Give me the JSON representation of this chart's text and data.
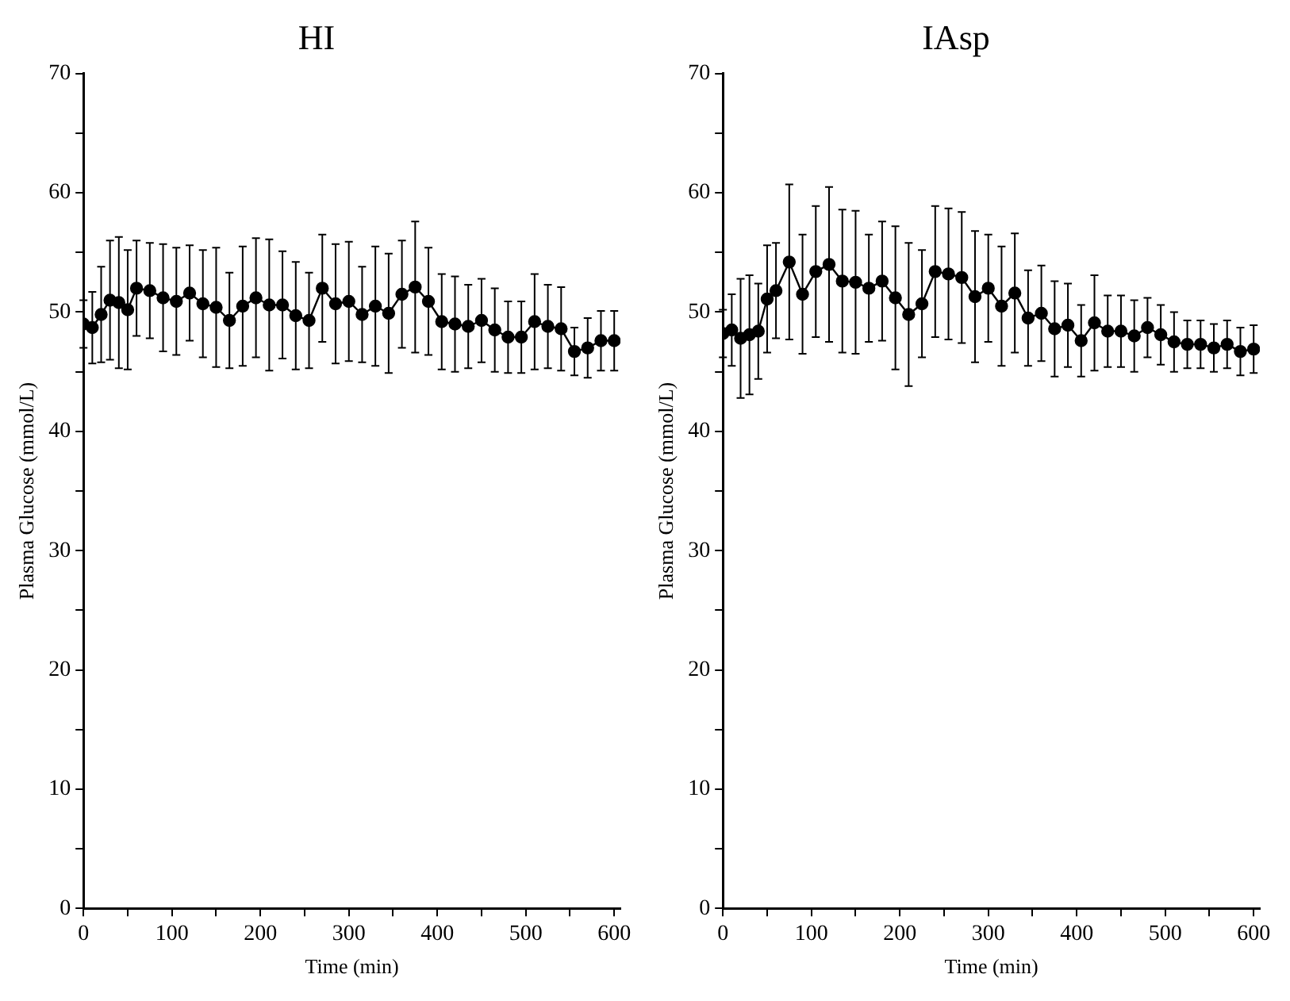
{
  "chart_data": [
    {
      "type": "line",
      "title": "HI",
      "xlabel": "Time (min)",
      "ylabel": "Plasma Glucose (mmol/L)",
      "x": [
        0,
        10,
        20,
        30,
        40,
        50,
        60,
        75,
        90,
        105,
        120,
        135,
        150,
        165,
        180,
        195,
        210,
        225,
        240,
        255,
        270,
        285,
        300,
        315,
        330,
        345,
        360,
        375,
        390,
        405,
        420,
        435,
        450,
        465,
        480,
        495,
        510,
        525,
        540,
        555,
        570,
        585,
        600
      ],
      "series": [
        {
          "color": "#000000",
          "values": [
            49.0,
            48.7,
            49.8,
            51.0,
            50.8,
            50.2,
            52.0,
            51.8,
            51.2,
            50.9,
            51.6,
            50.7,
            50.4,
            49.3,
            50.5,
            51.2,
            50.6,
            50.6,
            49.7,
            49.3,
            52.0,
            50.7,
            50.9,
            49.8,
            50.5,
            49.9,
            51.5,
            52.1,
            50.9,
            49.2,
            49.0,
            48.8,
            49.3,
            48.5,
            47.9,
            47.9,
            49.2,
            48.8,
            48.6,
            46.7,
            47.0,
            47.6,
            47.6
          ],
          "errors": [
            2,
            3,
            4,
            5,
            5.5,
            5,
            4,
            4,
            4.5,
            4.5,
            4,
            4.5,
            5,
            4,
            5,
            5,
            5.5,
            4.5,
            4.5,
            4,
            4.5,
            5,
            5,
            4,
            5,
            5,
            4.5,
            5.5,
            4.5,
            4,
            4,
            3.5,
            3.5,
            3.5,
            3,
            3,
            4,
            3.5,
            3.5,
            2,
            2.5,
            2.5,
            2.5
          ]
        }
      ],
      "xlim": [
        0,
        607
      ],
      "xticks": [
        0,
        {
          "value": 50,
          "label": null
        },
        100,
        {
          "value": 150,
          "label": null
        },
        200,
        {
          "value": 250,
          "label": null
        },
        300,
        {
          "value": 350,
          "label": null
        },
        400,
        {
          "value": 450,
          "label": null
        },
        500,
        {
          "value": 550,
          "label": null
        },
        600
      ],
      "ylim": [
        0,
        70
      ],
      "yticks": [
        0,
        {
          "value": 5,
          "label": null
        },
        10,
        {
          "value": 15,
          "label": null
        },
        20,
        {
          "value": 25,
          "label": null
        },
        30,
        {
          "value": 35,
          "label": null
        },
        40,
        {
          "value": 45,
          "label": null
        },
        50,
        {
          "value": 55,
          "label": null
        },
        60,
        {
          "value": 65,
          "label": null
        },
        70
      ],
      "grid": false,
      "legend": false,
      "marker": "circle",
      "line_style": "solid"
    },
    {
      "type": "line",
      "title": "IAsp",
      "xlabel": "Time (min)",
      "ylabel": "Plasma Glucose (mmol/L)",
      "x": [
        0,
        10,
        20,
        30,
        40,
        50,
        60,
        75,
        90,
        105,
        120,
        135,
        150,
        165,
        180,
        195,
        210,
        225,
        240,
        255,
        270,
        285,
        300,
        315,
        330,
        345,
        360,
        375,
        390,
        405,
        420,
        435,
        450,
        465,
        480,
        495,
        510,
        525,
        540,
        555,
        570,
        585,
        600
      ],
      "series": [
        {
          "color": "#000000",
          "values": [
            48.2,
            48.5,
            47.8,
            48.1,
            48.4,
            51.1,
            51.8,
            54.2,
            51.5,
            53.4,
            54.0,
            52.6,
            52.5,
            52.0,
            52.6,
            51.2,
            49.8,
            50.7,
            53.4,
            53.2,
            52.9,
            51.3,
            52.0,
            50.5,
            51.6,
            49.5,
            49.9,
            48.6,
            48.9,
            47.6,
            49.1,
            48.4,
            48.4,
            48.0,
            48.7,
            48.1,
            47.5,
            47.3,
            47.3,
            47.0,
            47.3,
            46.7,
            46.9
          ],
          "errors": [
            2,
            3,
            5,
            5,
            4,
            4.5,
            4,
            6.5,
            5,
            5.5,
            6.5,
            6,
            6,
            4.5,
            5,
            6,
            6,
            4.5,
            5.5,
            5.5,
            5.5,
            5.5,
            4.5,
            5,
            5,
            4,
            4,
            4,
            3.5,
            3,
            4,
            3,
            3,
            3,
            2.5,
            2.5,
            2.5,
            2,
            2,
            2,
            2,
            2,
            2
          ]
        }
      ],
      "xlim": [
        0,
        607
      ],
      "xticks": [
        0,
        {
          "value": 50,
          "label": null
        },
        100,
        {
          "value": 150,
          "label": null
        },
        200,
        {
          "value": 250,
          "label": null
        },
        300,
        {
          "value": 350,
          "label": null
        },
        400,
        {
          "value": 450,
          "label": null
        },
        500,
        {
          "value": 550,
          "label": null
        },
        600
      ],
      "ylim": [
        0,
        70
      ],
      "yticks": [
        0,
        {
          "value": 5,
          "label": null
        },
        10,
        {
          "value": 15,
          "label": null
        },
        20,
        {
          "value": 25,
          "label": null
        },
        30,
        {
          "value": 35,
          "label": null
        },
        40,
        {
          "value": 45,
          "label": null
        },
        50,
        {
          "value": 55,
          "label": null
        },
        60,
        {
          "value": 65,
          "label": null
        },
        70
      ],
      "grid": false,
      "legend": false,
      "marker": "circle",
      "line_style": "solid"
    }
  ]
}
